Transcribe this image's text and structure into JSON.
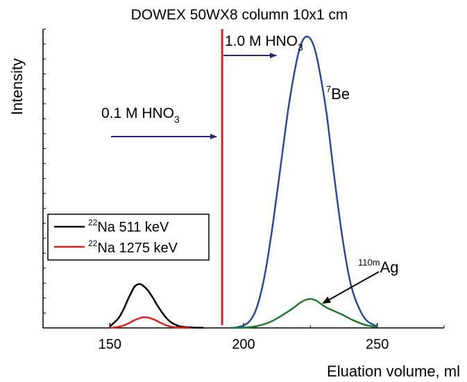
{
  "chart_data": {
    "type": "line",
    "title": "DOWEX 50WX8 column 10x1 cm",
    "xlabel": "Eluation volume, ml",
    "ylabel": "Intensity",
    "xlim": [
      125,
      275
    ],
    "ylim": [
      0,
      100
    ],
    "xticks": [
      150,
      200,
      250
    ],
    "grid": false,
    "legend_position": "bottom-left",
    "series": [
      {
        "name": "22Na 511 keV",
        "legend_sup": "22",
        "legend_main": "Na 511 keV",
        "color": "#000000",
        "x": [
          150,
          153,
          155,
          157,
          159,
          160,
          161,
          162,
          164,
          166,
          168,
          170,
          172,
          174,
          176,
          178,
          180,
          182,
          185
        ],
        "y": [
          0.5,
          3,
          6,
          10,
          13.5,
          14.4,
          14.7,
          14.4,
          12.8,
          10.2,
          7.2,
          4.6,
          2.5,
          1.3,
          0.6,
          0.3,
          0.2,
          0.1,
          0.1
        ]
      },
      {
        "name": "22Na 1275 keV",
        "legend_sup": "22",
        "legend_main": "Na 1275 keV",
        "color": "#e02020",
        "x": [
          150,
          154,
          157,
          159,
          161,
          162,
          163,
          164,
          165,
          167,
          169,
          171,
          173,
          176,
          180
        ],
        "y": [
          0,
          0.5,
          1.5,
          2.5,
          3.2,
          3.5,
          3.6,
          3.5,
          3.3,
          2.6,
          1.7,
          0.9,
          0.4,
          0.1,
          0
        ]
      },
      {
        "name": "7Be",
        "color": "#2a4aa0",
        "x": [
          195,
          198,
          202,
          205,
          208,
          211,
          214,
          217,
          220,
          222,
          224,
          226,
          228,
          231,
          234,
          237,
          240,
          243,
          246,
          250
        ],
        "y": [
          0,
          0.3,
          2,
          7,
          18,
          35,
          55,
          75,
          90,
          96,
          97.5,
          95,
          88,
          72,
          50,
          30,
          15,
          7,
          2.5,
          0.5
        ]
      },
      {
        "name": "110mAg",
        "color": "#1e7a30",
        "x": [
          195,
          200,
          205,
          210,
          214,
          218,
          221,
          223,
          225,
          227,
          229,
          231,
          234,
          237,
          240,
          243,
          246,
          250
        ],
        "y": [
          0,
          0.1,
          0.6,
          2,
          4,
          6.3,
          8.3,
          9.3,
          9.7,
          9.2,
          8,
          6.8,
          5.6,
          4.4,
          3,
          1.8,
          0.9,
          0.3
        ]
      }
    ],
    "annotations": {
      "hno3_low": {
        "main": "0.1 M HNO",
        "sub": "3"
      },
      "hno3_high": {
        "main": "1.0 M HNO",
        "sub": "3"
      },
      "be_label": {
        "sup": "7",
        "main": "Be"
      },
      "ag_label": {
        "sup": "110m",
        "main": "Ag"
      }
    },
    "switch_line": {
      "x": 192,
      "color": "#e02020"
    },
    "arrow_color": "#27237a"
  }
}
